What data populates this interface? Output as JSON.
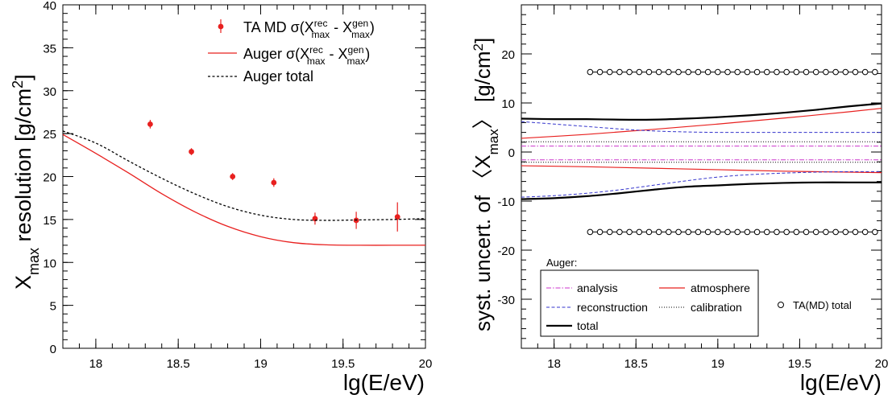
{
  "chart_data": [
    {
      "type": "scatter",
      "xlabel": "lg(E/eV)",
      "ylabel": "X_max resolution [g/cm^2]",
      "xlim": [
        17.8,
        20.0
      ],
      "ylim": [
        0,
        40
      ],
      "xticks": [
        18,
        18.5,
        19,
        19.5,
        20
      ],
      "xtick_labels": [
        "18",
        "18.5",
        "19",
        "19.5",
        "20"
      ],
      "yticks": [
        0,
        5,
        10,
        15,
        20,
        25,
        30,
        35,
        40
      ],
      "ytick_labels": [
        "0",
        "5",
        "10",
        "15",
        "20",
        "25",
        "30",
        "35",
        "40"
      ],
      "legend_position": "top-right",
      "series": [
        {
          "name": "TA MD σ(X^rec_max - X^gen_max)",
          "style": "points-with-errors",
          "color": "#e8201f",
          "x": [
            18.33,
            18.58,
            18.83,
            19.08,
            19.33,
            19.58,
            19.83
          ],
          "y": [
            26.1,
            22.9,
            20.0,
            19.3,
            15.1,
            14.9,
            15.3
          ],
          "yerr": [
            0.5,
            0.4,
            0.4,
            0.5,
            0.7,
            1.0,
            1.7
          ]
        },
        {
          "name": "Auger σ(X^rec_max - X^gen_max)",
          "style": "solid",
          "color": "#e8201f",
          "x": [
            17.8,
            18.0,
            18.2,
            18.4,
            18.6,
            18.8,
            19.0,
            19.2,
            19.4,
            19.6,
            19.8,
            20.0
          ],
          "y": [
            24.9,
            22.7,
            20.4,
            18.0,
            15.9,
            14.2,
            13.0,
            12.3,
            12.05,
            12.0,
            12.0,
            12.0
          ]
        },
        {
          "name": "Auger total",
          "style": "dashed",
          "color": "#000000",
          "x": [
            17.8,
            18.0,
            18.2,
            18.4,
            18.6,
            18.8,
            19.0,
            19.2,
            19.4,
            19.6,
            19.8,
            20.0
          ],
          "y": [
            25.3,
            23.9,
            21.8,
            19.8,
            18.0,
            16.5,
            15.5,
            15.0,
            14.9,
            14.95,
            15.0,
            15.1
          ]
        }
      ]
    },
    {
      "type": "line",
      "xlabel": "lg(E/eV)",
      "ylabel": "syst. uncert. of ⟨X_max⟩ [g/cm^2]",
      "xlim": [
        17.8,
        20.0
      ],
      "ylim": [
        -40,
        30
      ],
      "xticks": [
        18,
        18.5,
        19,
        19.5,
        20
      ],
      "xtick_labels": [
        "18",
        "18.5",
        "19",
        "19.5",
        "20"
      ],
      "yticks": [
        -30,
        -20,
        -10,
        0,
        10,
        20
      ],
      "ytick_labels": [
        "-30",
        "-20",
        "-10",
        "0",
        "10",
        "20"
      ],
      "legend_position": "bottom",
      "legend_title": "Auger:",
      "series": [
        {
          "name": "analysis",
          "style": "dashdot",
          "color": "#cc33cc",
          "x": [
            17.8,
            18.4,
            19.0,
            19.6,
            20.0
          ],
          "upper": [
            1.2,
            1.2,
            1.2,
            1.2,
            1.2
          ],
          "lower": [
            -1.6,
            -1.6,
            -1.6,
            -1.6,
            -1.6
          ]
        },
        {
          "name": "atmosphere",
          "style": "solid",
          "color": "#e8201f",
          "x": [
            17.8,
            18.2,
            18.6,
            19.0,
            19.4,
            19.8,
            20.0
          ],
          "upper": [
            2.8,
            3.6,
            4.6,
            5.7,
            6.9,
            8.2,
            8.9
          ],
          "lower": [
            -2.8,
            -3.0,
            -3.3,
            -3.6,
            -3.9,
            -4.1,
            -4.2
          ]
        },
        {
          "name": "reconstruction",
          "style": "dashed",
          "color": "#3333cc",
          "x": [
            17.8,
            18.0,
            18.2,
            18.4,
            18.6,
            18.8,
            19.0,
            19.2,
            19.4,
            19.6,
            19.8,
            20.0
          ],
          "upper": [
            6.2,
            5.7,
            5.2,
            4.7,
            4.3,
            4.1,
            4.0,
            4.0,
            4.0,
            4.0,
            4.0,
            4.0
          ],
          "lower": [
            -9.2,
            -8.9,
            -8.4,
            -7.7,
            -6.8,
            -5.9,
            -5.1,
            -4.6,
            -4.3,
            -4.1,
            -4.0,
            -4.0
          ]
        },
        {
          "name": "calibration",
          "style": "dotted",
          "color": "#000000",
          "x": [
            17.8,
            18.4,
            19.0,
            19.6,
            20.0
          ],
          "upper": [
            2.1,
            2.1,
            2.1,
            2.1,
            2.1
          ],
          "lower": [
            -2.1,
            -2.1,
            -2.1,
            -2.1,
            -2.1
          ]
        },
        {
          "name": "total",
          "style": "solid-thick",
          "color": "#000000",
          "x": [
            17.8,
            18.0,
            18.2,
            18.4,
            18.6,
            18.8,
            19.0,
            19.2,
            19.4,
            19.6,
            19.8,
            20.0
          ],
          "upper": [
            6.8,
            6.7,
            6.7,
            6.6,
            6.6,
            6.8,
            7.1,
            7.5,
            8.0,
            8.6,
            9.3,
            9.9
          ],
          "lower": [
            -9.6,
            -9.4,
            -9.0,
            -8.4,
            -7.7,
            -7.1,
            -6.8,
            -6.5,
            -6.3,
            -6.2,
            -6.2,
            -6.2
          ]
        },
        {
          "name": "TA(MD) total",
          "style": "open-circles",
          "color": "#000000",
          "x": [
            18.22,
            18.28,
            18.34,
            18.4,
            18.46,
            18.52,
            18.58,
            18.64,
            18.7,
            18.76,
            18.82,
            18.88,
            18.94,
            19.0,
            19.06,
            19.12,
            19.18,
            19.24,
            19.3,
            19.36,
            19.42,
            19.48,
            19.54,
            19.6,
            19.66,
            19.72,
            19.78,
            19.84,
            19.9,
            19.96
          ],
          "upper_value": 16.3,
          "lower_value": -16.3
        }
      ]
    }
  ]
}
